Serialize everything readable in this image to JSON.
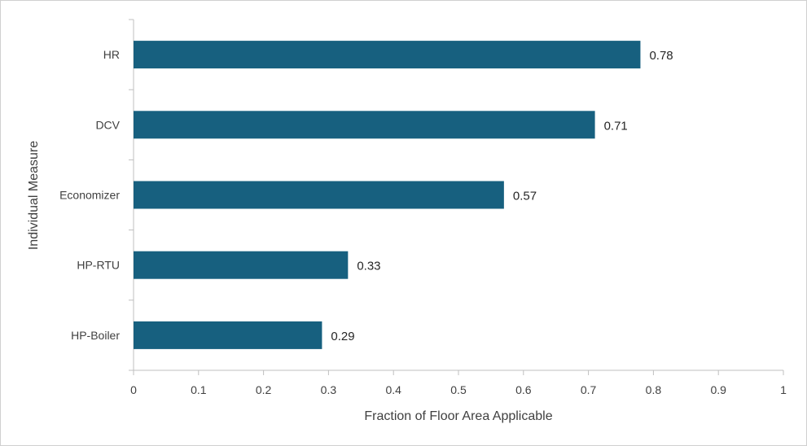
{
  "chart_data": {
    "type": "bar",
    "orientation": "horizontal",
    "title": "",
    "xlabel": "Fraction of Floor Area Applicable",
    "ylabel": "Individual Measure",
    "categories": [
      "HR",
      "DCV",
      "Economizer",
      "HP-RTU",
      "HP-Boiler"
    ],
    "values": [
      0.78,
      0.71,
      0.57,
      0.33,
      0.29
    ],
    "value_labels": [
      "0.78",
      "0.71",
      "0.57",
      "0.33",
      "0.29"
    ],
    "xlim": [
      0,
      1
    ],
    "xticks": [
      0,
      0.1,
      0.2,
      0.3,
      0.4,
      0.5,
      0.6,
      0.7,
      0.8,
      0.9,
      1
    ],
    "xtick_labels": [
      "0",
      "0.1",
      "0.2",
      "0.3",
      "0.4",
      "0.5",
      "0.6",
      "0.7",
      "0.8",
      "0.9",
      "1"
    ],
    "grid": false,
    "legend": "none",
    "bar_color": "#17607f"
  }
}
